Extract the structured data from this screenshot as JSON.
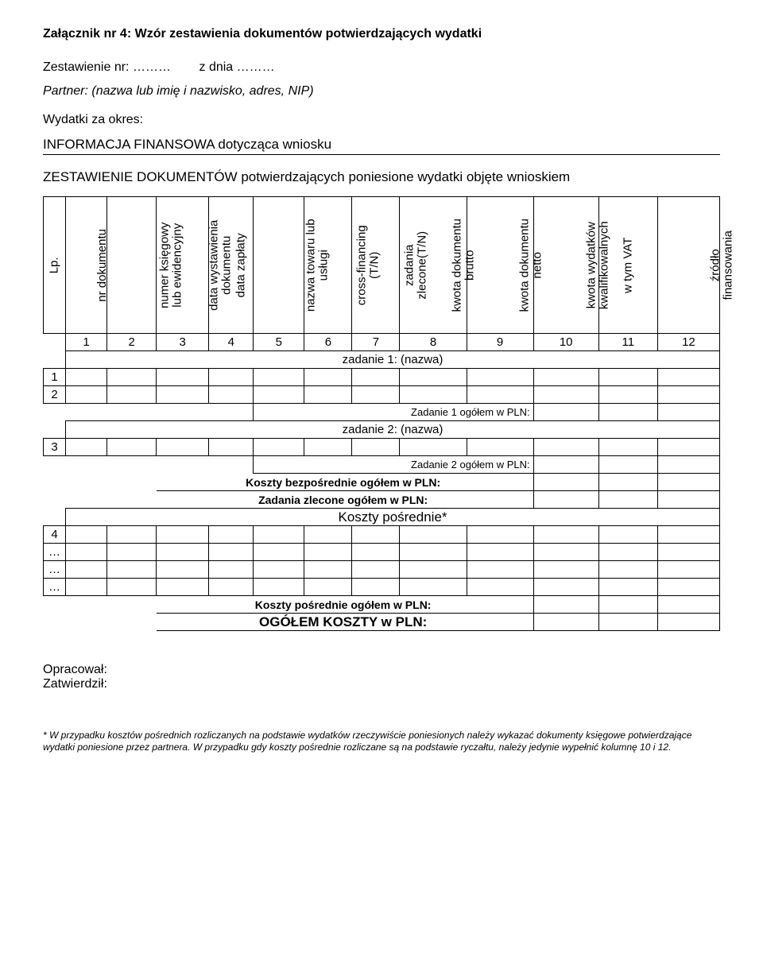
{
  "attachment_title": "Załącznik nr 4: Wzór zestawienia dokumentów potwierdzających wydatki",
  "zestawienie_label": "Zestawienie nr: ………",
  "zdnia_label": "z dnia ………",
  "partner_line": "Partner: (nazwa lub imię i nazwisko, adres, NIP)",
  "wydatki_line": "Wydatki za okres:",
  "informacja_line": "INFORMACJA FINANSOWA dotycząca wniosku",
  "zestawienie_sub": "ZESTAWIENIE DOKUMENTÓW potwierdzających poniesione wydatki objęte wnioskiem",
  "columns": {
    "c0": "Lp.",
    "c1": "nr dokumentu",
    "c2": "numer księgowy\nlub ewidencyjny",
    "c3": "data wystawienia\ndokumentu",
    "c4": "data zapłaty",
    "c5": "nazwa towaru lub\nusługi",
    "c6": "cross-financing\n(T/N)",
    "c7": "zadania\nzlecone(T/N)",
    "c8": "kwota dokumentu\nbrutto",
    "c9": "kwota dokumentu\nnetto",
    "c10": "kwota wydatków\nkwalifikowalnych",
    "c11": "w tym VAT",
    "c12": "źródło\nfinansowania"
  },
  "nums": [
    "1",
    "2",
    "3",
    "4",
    "5",
    "6",
    "7",
    "8",
    "9",
    "10",
    "11",
    "12"
  ],
  "sections": {
    "zad1": "zadanie 1: (nazwa)",
    "zad1_sum": "Zadanie 1 ogółem w PLN:",
    "zad2": "zadanie 2: (nazwa)",
    "zad2_sum": "Zadanie 2 ogółem w PLN:",
    "koszty_bezposrednie": "Koszty bezpośrednie ogółem w PLN:",
    "zadania_zlecone": "Zadania zlecone ogółem w PLN:",
    "koszty_posrednie_hdr": "Koszty pośrednie*",
    "koszty_posrednie_sum": "Koszty pośrednie ogółem w PLN:",
    "ogolem": "OGÓŁEM KOSZTY w PLN:"
  },
  "lp": {
    "r1": "1",
    "r2": "2",
    "r3": "3",
    "r4": "4",
    "dots": "…"
  },
  "footer": {
    "opracowal": "Opracował:",
    "zatwierdzil": "Zatwierdził:"
  },
  "footnote": "* W przypadku kosztów pośrednich rozliczanych na podstawie wydatków rzeczywiście poniesionych należy wykazać dokumenty księgowe potwierdzające wydatki poniesione przez partnera. W przypadku gdy koszty pośrednie rozliczane są na podstawie ryczałtu, należy jedynie wypełnić kolumnę 10 i 12."
}
